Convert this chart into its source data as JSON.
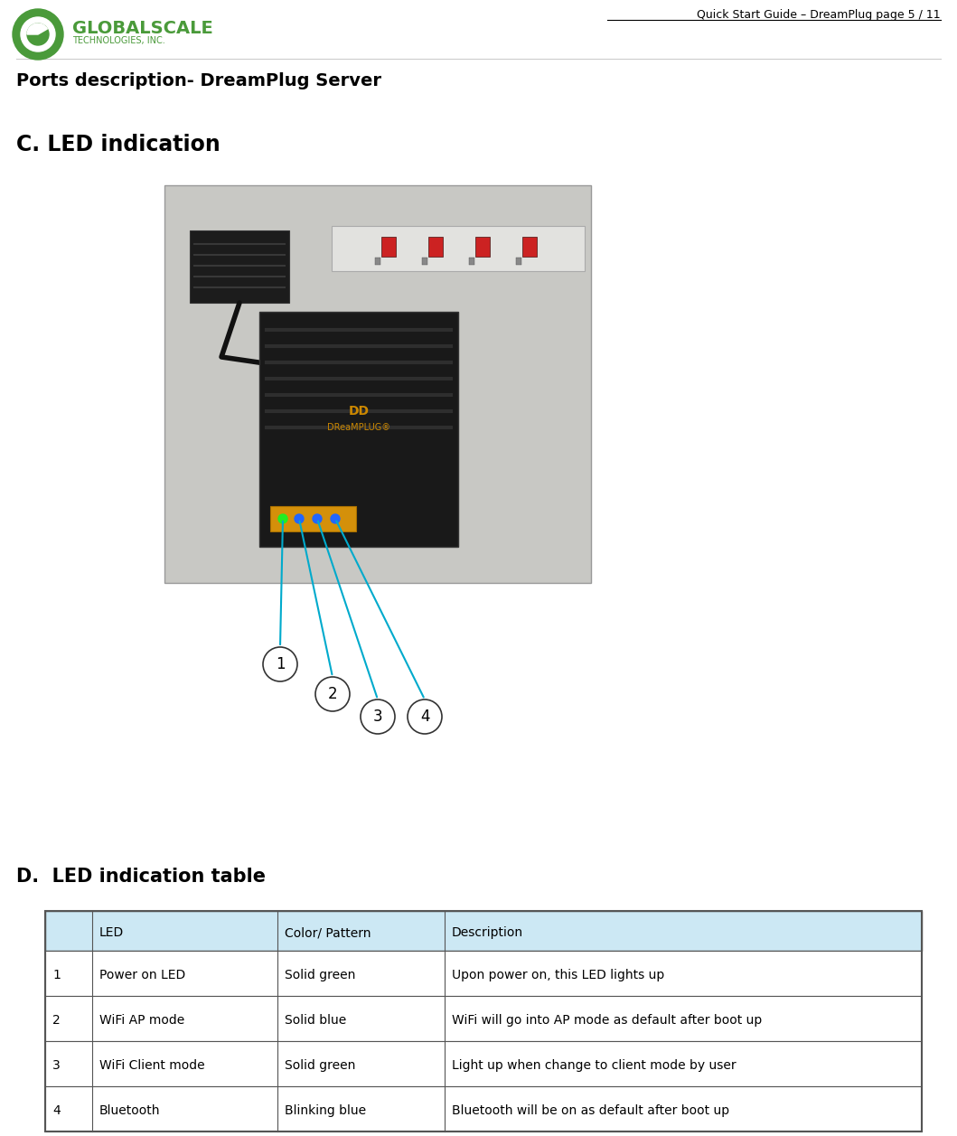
{
  "header_right": "Quick Start Guide – DreamPlug page 5 / 11",
  "section_title": "Ports description- DreamPlug Server",
  "led_section_title": "C. LED indication",
  "table_section_title": "D.  LED indication table",
  "table_header": [
    "",
    "LED",
    "Color/ Pattern",
    "Description"
  ],
  "table_header_bg": "#cce8f4",
  "table_rows": [
    [
      "1",
      "Power on LED",
      "Solid green",
      "Upon power on, this LED lights up"
    ],
    [
      "2",
      "WiFi AP mode",
      "Solid blue",
      "WiFi will go into AP mode as default after boot up"
    ],
    [
      "3",
      "WiFi Client mode",
      "Solid green",
      "Light up when change to client mode by user"
    ],
    [
      "4",
      "Bluetooth",
      "Blinking blue",
      "Bluetooth will be on as default after boot up"
    ]
  ],
  "table_border_color": "#555555",
  "table_text_color": "#000000",
  "bg_color": "#ffffff",
  "circle_labels": [
    "1",
    "2",
    "3",
    "4"
  ],
  "arrow_color": "#00aacc",
  "logo_color": "#4a9a3a"
}
